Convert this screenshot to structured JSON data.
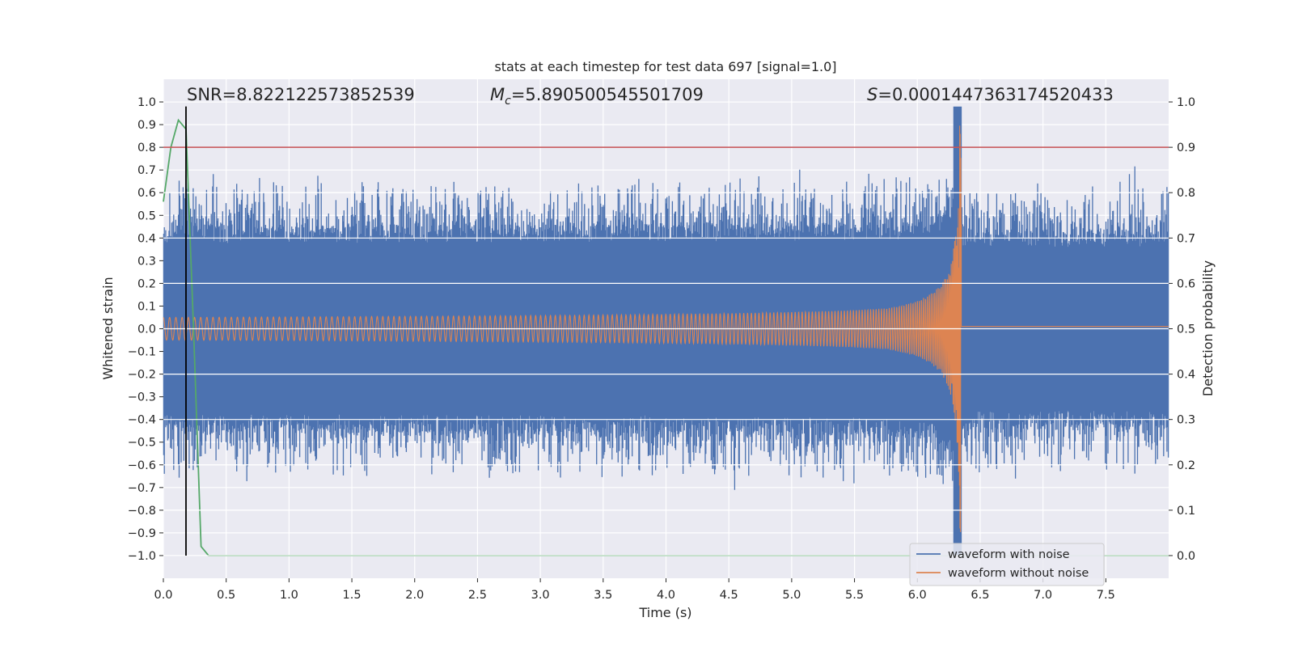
{
  "chart_data": {
    "type": "line",
    "title": "stats at each timestep for test data 697 [signal=1.0]",
    "xlabel": "Time (s)",
    "ylabel_left": "Whitened strain",
    "ylabel_right": "Detection probability",
    "xlim": [
      0.0,
      8.0
    ],
    "ylim_left": [
      -1.1,
      1.1
    ],
    "ylim_right": [
      -0.05,
      1.05
    ],
    "x_ticks": [
      "0.0",
      "0.5",
      "1.0",
      "1.5",
      "2.0",
      "2.5",
      "3.0",
      "3.5",
      "4.0",
      "4.5",
      "5.0",
      "5.5",
      "6.0",
      "6.5",
      "7.0",
      "7.5"
    ],
    "y_left_ticks": [
      "1.0",
      "0.9",
      "0.8",
      "0.7",
      "0.6",
      "0.5",
      "0.4",
      "0.3",
      "0.2",
      "0.1",
      "0.0",
      "−0.1",
      "−0.2",
      "−0.3",
      "−0.4",
      "−0.5",
      "−0.6",
      "−0.7",
      "−0.8",
      "−0.9",
      "−1.0"
    ],
    "y_right_ticks": [
      "1.0",
      "0.9",
      "0.8",
      "0.7",
      "0.6",
      "0.5",
      "0.4",
      "0.3",
      "0.2",
      "0.1",
      "0.0"
    ],
    "grid": true,
    "annotations": {
      "snr_label": "SNR=8.822122573852539",
      "mc_symbol": "M",
      "mc_sub": "c",
      "mc_value": "=5.890500545501709",
      "s_symbol": "S",
      "s_value": "=0.0001447363174520433"
    },
    "threshold_line": {
      "y_right": 0.9,
      "color": "#c44e52"
    },
    "vertical_marker": {
      "x": 0.18,
      "y_left_range": [
        -1.0,
        0.98
      ],
      "color": "#000000"
    },
    "merger_time": 6.35,
    "series": [
      {
        "name": "waveform with noise",
        "color": "#4c72b0",
        "noise_amplitude": 0.5,
        "peak_min": -1.0,
        "peak_max": 0.98
      },
      {
        "name": "waveform without noise",
        "color": "#dd8452",
        "start_amplitude": 0.05,
        "peak_amplitude": 0.9,
        "post_merger_value": 0.01
      },
      {
        "name": "detection probability",
        "color": "#55a868",
        "axis": "right",
        "x": [
          0.0,
          0.06,
          0.12,
          0.18,
          0.24,
          0.3,
          0.36,
          8.0
        ],
        "values": [
          0.78,
          0.9,
          0.96,
          0.94,
          0.5,
          0.02,
          0.0,
          0.0
        ]
      }
    ],
    "legend": {
      "placement": "lower-right",
      "entries": [
        "waveform with noise",
        "waveform without noise"
      ]
    }
  }
}
